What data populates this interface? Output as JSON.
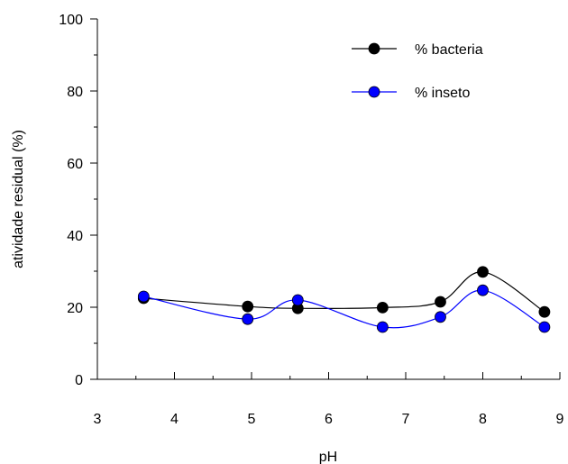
{
  "chart_data": {
    "type": "line",
    "xlabel": "pH",
    "ylabel": "atividade residual (%)",
    "xlim": [
      3,
      9
    ],
    "ylim": [
      0,
      100
    ],
    "x_ticks": [
      "3",
      "4",
      "5",
      "6",
      "7",
      "8",
      "9"
    ],
    "y_ticks": [
      "0",
      "20",
      "40",
      "60",
      "80",
      "100"
    ],
    "legend_position": "top-right",
    "grid": false,
    "series": [
      {
        "name": "% bacteria",
        "color": "#000000",
        "marker": "circle",
        "x": [
          3.6,
          4.95,
          5.6,
          6.7,
          7.45,
          8.0,
          8.8
        ],
        "y": [
          22.5,
          20.2,
          19.7,
          19.9,
          21.5,
          29.8,
          18.7
        ]
      },
      {
        "name": "% inseto",
        "color": "#0000ff",
        "marker": "circle",
        "x": [
          3.6,
          4.95,
          5.6,
          6.7,
          7.45,
          8.0,
          8.8
        ],
        "y": [
          23.0,
          16.7,
          22.0,
          14.5,
          17.3,
          24.7,
          14.5
        ]
      }
    ]
  }
}
